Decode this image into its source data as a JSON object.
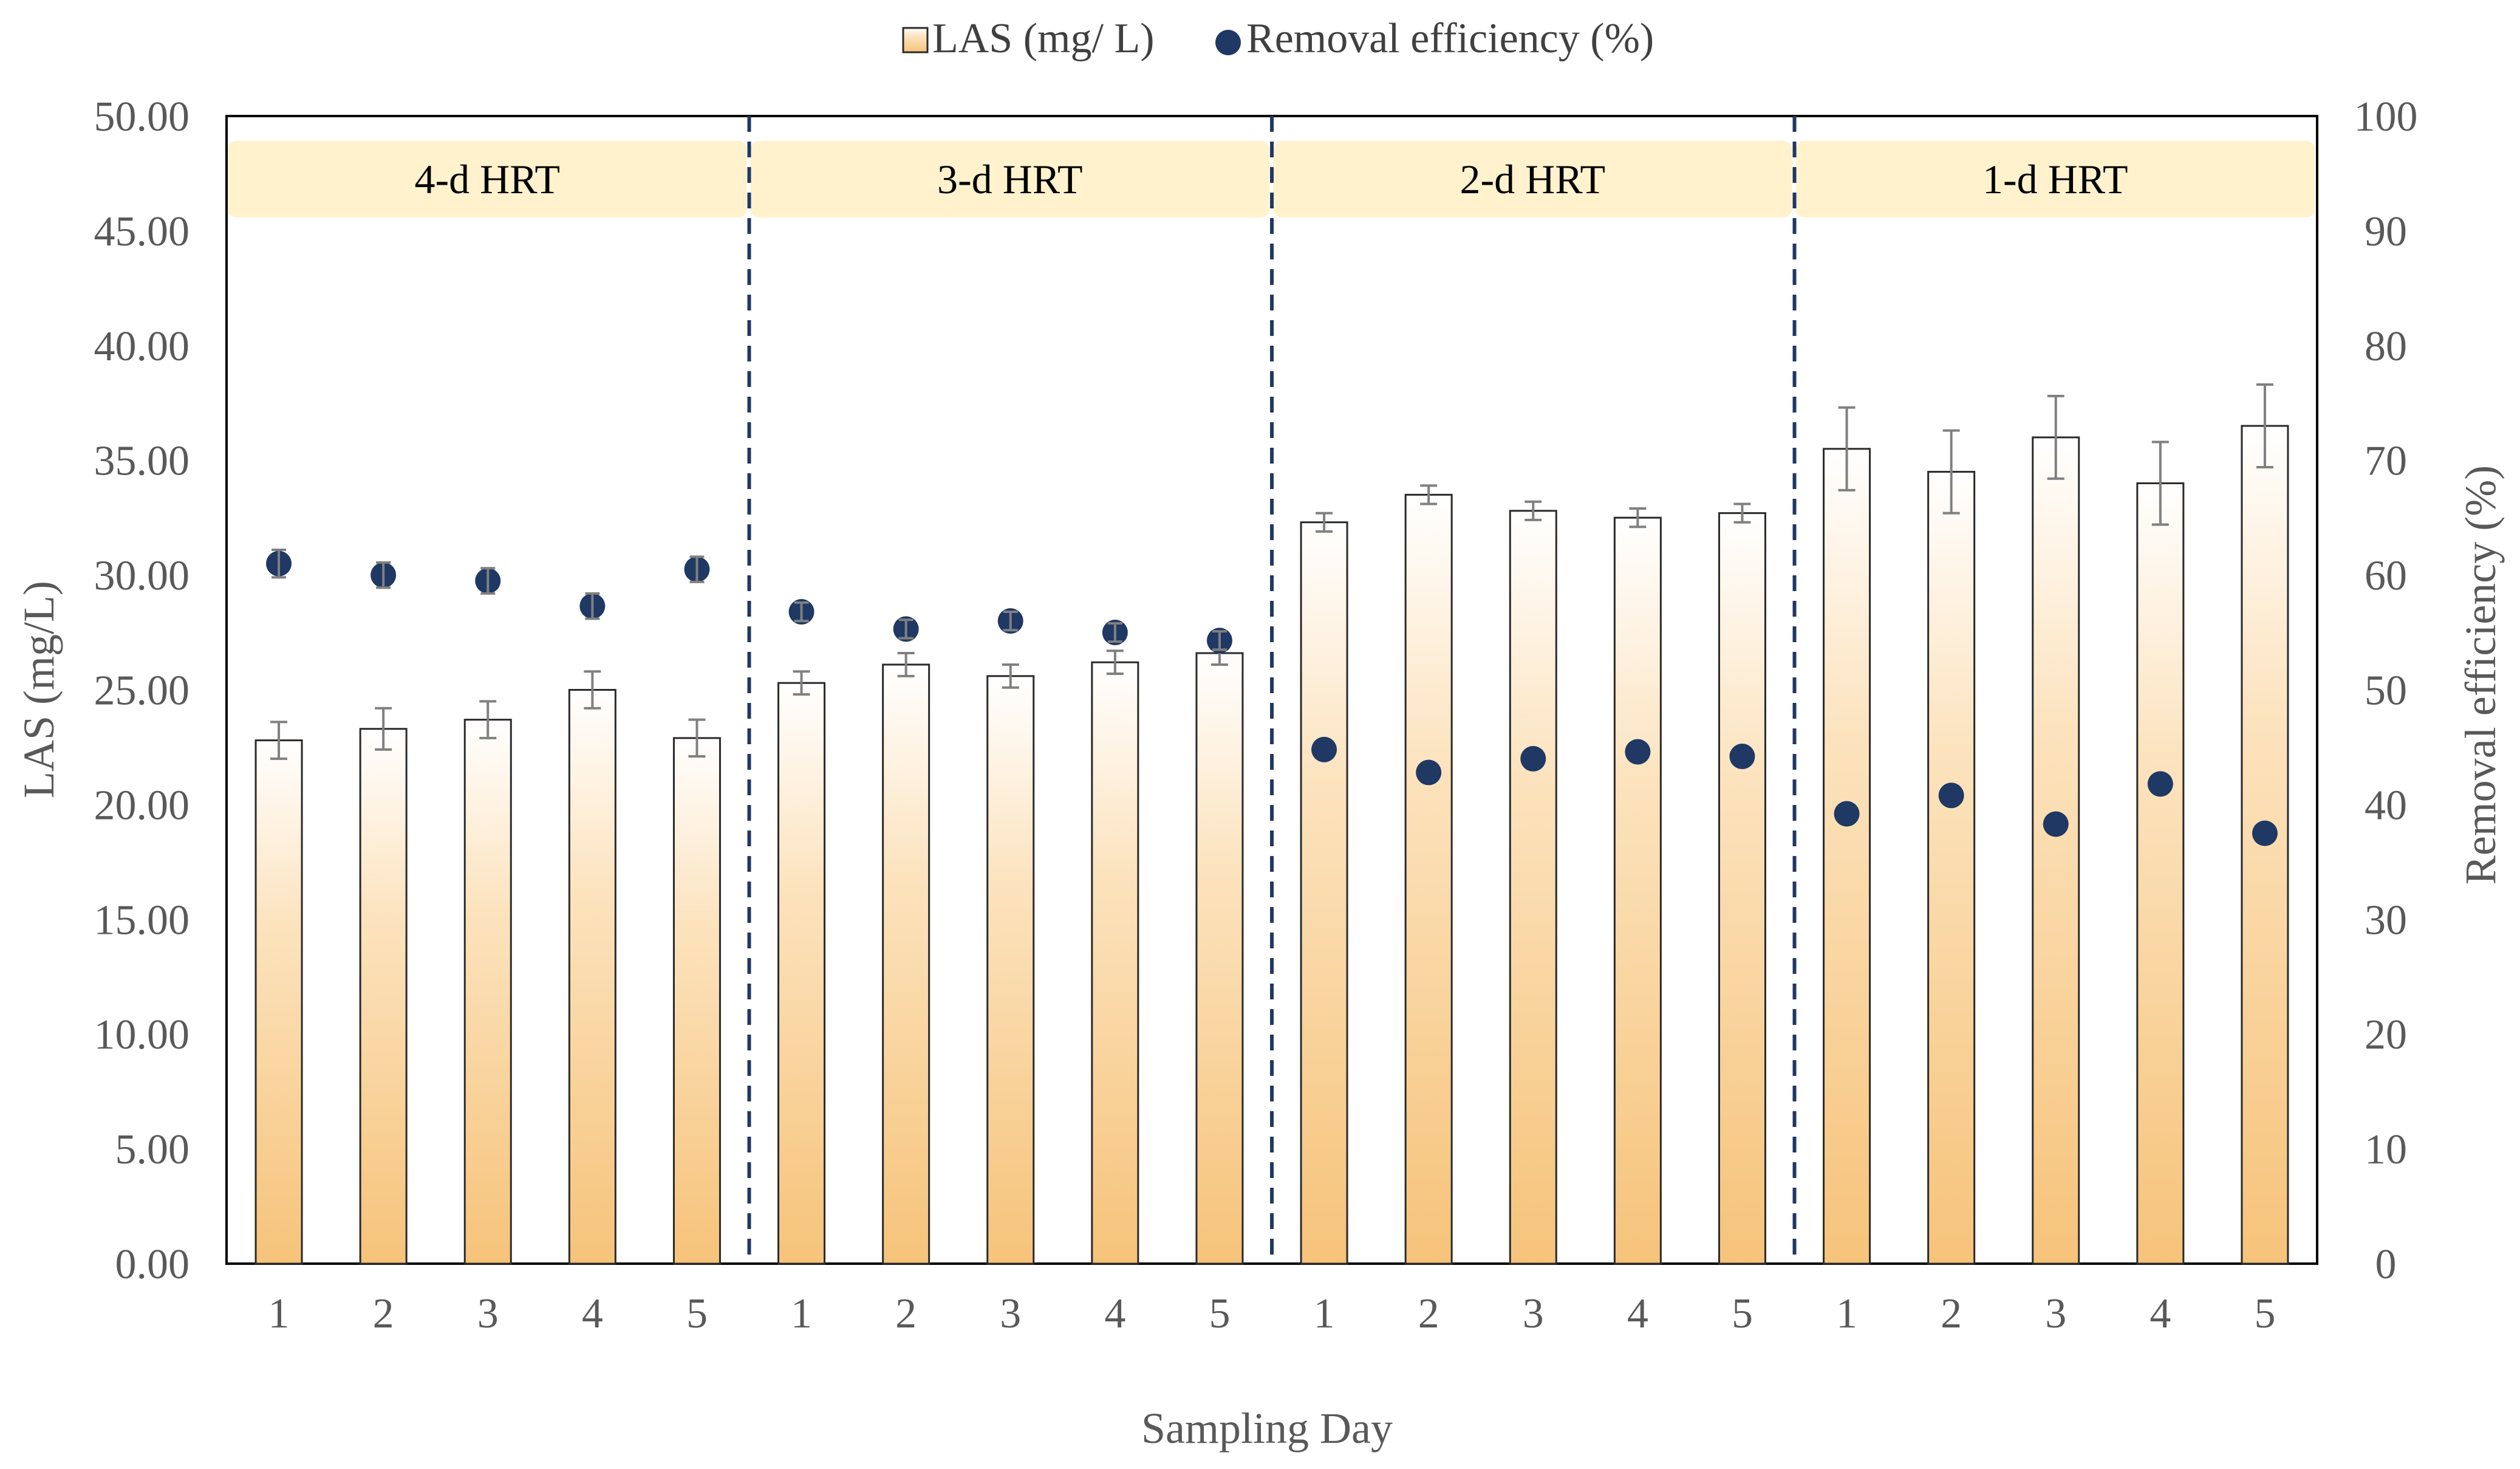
{
  "chart_data": {
    "type": "bar",
    "xlabel": "Sampling Day",
    "ylabel": "LAS (mg/L)",
    "y2label": "Removal efficiency (%)",
    "ylim": [
      0,
      50
    ],
    "y2lim": [
      0,
      100
    ],
    "yticks": [
      "0.00",
      "5.00",
      "10.00",
      "15.00",
      "20.00",
      "25.00",
      "30.00",
      "35.00",
      "40.00",
      "45.00",
      "50.00"
    ],
    "y2ticks": [
      "0",
      "10",
      "20",
      "30",
      "40",
      "50",
      "60",
      "70",
      "80",
      "90",
      "100"
    ],
    "grid": false,
    "legend_position": "top-center",
    "categories": [
      "1",
      "2",
      "3",
      "4",
      "5",
      "1",
      "2",
      "3",
      "4",
      "5",
      "1",
      "2",
      "3",
      "4",
      "5",
      "1",
      "2",
      "3",
      "4",
      "5"
    ],
    "periods": [
      {
        "label": "4-d HRT",
        "start": 0,
        "end": 4
      },
      {
        "label": "3-d HRT",
        "start": 5,
        "end": 9
      },
      {
        "label": "2-d HRT",
        "start": 10,
        "end": 14
      },
      {
        "label": "1-d HRT",
        "start": 15,
        "end": 19
      }
    ],
    "series": [
      {
        "name": "LAS (mg/ L)",
        "kind": "bar",
        "axis": "left",
        "color": "#F6C37A",
        "values": [
          22.8,
          23.3,
          23.7,
          25.0,
          22.9,
          25.3,
          26.1,
          25.6,
          26.2,
          26.6,
          32.3,
          33.5,
          32.8,
          32.5,
          32.7,
          35.5,
          34.5,
          36.0,
          34.0,
          36.5
        ],
        "errors": [
          0.8,
          0.9,
          0.8,
          0.8,
          0.8,
          0.5,
          0.5,
          0.5,
          0.5,
          0.5,
          0.4,
          0.4,
          0.4,
          0.4,
          0.4,
          1.8,
          1.8,
          1.8,
          1.8,
          1.8
        ]
      },
      {
        "name": "Removal efficiency (%)",
        "kind": "scatter",
        "axis": "right",
        "color": "#1F3864",
        "values": [
          61.0,
          60.0,
          59.5,
          57.3,
          60.5,
          56.8,
          55.3,
          56.0,
          55.0,
          54.3,
          44.8,
          42.8,
          44.0,
          44.6,
          44.2,
          39.2,
          40.8,
          38.3,
          41.8,
          37.5
        ],
        "errors": [
          1.2,
          1.1,
          1.1,
          1.1,
          1.1,
          0.8,
          0.8,
          0.8,
          0.8,
          0.8,
          0,
          0,
          0,
          0,
          0,
          0,
          0,
          0,
          0,
          0
        ]
      }
    ]
  },
  "colors": {
    "bar_stroke": "#2a2a2a",
    "bar_top": "#FFFFFF",
    "bar_bottom": "#F6C37A",
    "marker": "#1F3864",
    "period_band": "#FFF2CC",
    "divider": "#1F3864",
    "error_bar": "#808080"
  }
}
